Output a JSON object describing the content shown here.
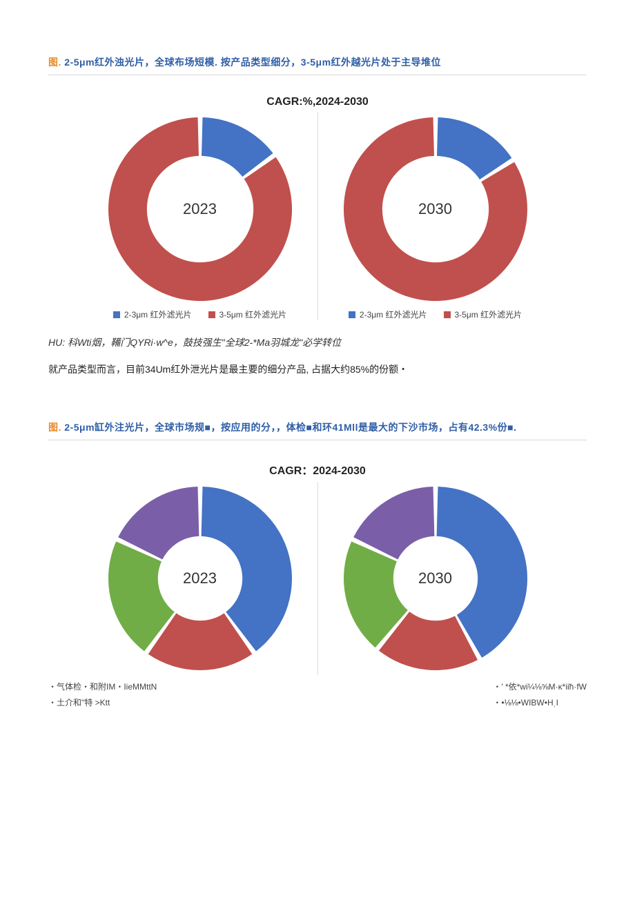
{
  "section1": {
    "caption_prefix": "图. ",
    "caption_rest": "2-5μm红外浊光片，全球布场短模. 按产品类型细分，3-5μm红外越光片处于主导堆位",
    "chart_title": "CAGR:%,2024-2030",
    "left": {
      "year": "2023",
      "type": "donut",
      "values": [
        15,
        85
      ],
      "colors": [
        "#4472c4",
        "#c0504d"
      ],
      "inner_radius_pct": 58,
      "background": "#ffffff"
    },
    "right": {
      "year": "2030",
      "type": "donut",
      "values": [
        16,
        84
      ],
      "colors": [
        "#4472c4",
        "#c0504d"
      ],
      "inner_radius_pct": 58,
      "background": "#ffffff"
    },
    "legend": [
      {
        "swatch": "#4472c4",
        "label": "2-3μm 红外滤光片"
      },
      {
        "swatch": "#c0504d",
        "label": "3-5μm 红外滤光片"
      }
    ],
    "source_note": "HU: 科Wti烟，鞴门QYRi·w^e，鼓技强生\"全球2-*Ma羽城龙\"必学转位",
    "body_text": "就产品类型而言，目前34Um红外泄光片是最主要的细分产品, 占据大约85%的份额・"
  },
  "section2": {
    "caption_prefix": "图. ",
    "caption_rest": "2-5μm缸外注光片，全球市场规■，按应用的分，，体检■和环41Mll是最大的下沙市场，占有42.3%份■.",
    "chart_title": "CAGR：2024-2030",
    "left": {
      "year": "2023",
      "type": "donut",
      "values": [
        40,
        20,
        22,
        18
      ],
      "colors": [
        "#4472c4",
        "#c0504d",
        "#71ad47",
        "#7a5fa8"
      ],
      "inner_radius_pct": 46,
      "background": "#ffffff"
    },
    "right": {
      "year": "2030",
      "type": "donut",
      "values": [
        42,
        19,
        21,
        18
      ],
      "colors": [
        "#4472c4",
        "#c0504d",
        "#71ad47",
        "#7a5fa8"
      ],
      "inner_radius_pct": 46,
      "background": "#ffffff"
    },
    "footer_left": [
      "・气体检・和附IM・IieMMttN",
      "・土介和\"特          >Ktt"
    ],
    "footer_right": [
      "・' *依*wi¼⅛⅝M·κ*iiħ·fW",
      "・•⅛⅛•WIBW•HˌI"
    ]
  }
}
